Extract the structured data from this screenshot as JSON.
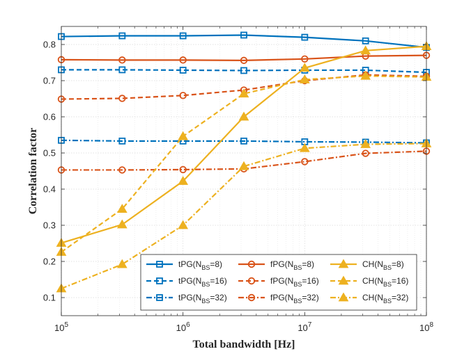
{
  "chart_data": {
    "type": "line",
    "xlabel": "Total bandwidth [Hz]",
    "ylabel": "Correlation factor",
    "xscale": "log",
    "xlim": [
      100000,
      100000000
    ],
    "ylim": [
      0.05,
      0.85
    ],
    "xticks": [
      {
        "value": 100000,
        "base": "10",
        "exp": "5"
      },
      {
        "value": 1000000,
        "base": "10",
        "exp": "6"
      },
      {
        "value": 10000000,
        "base": "10",
        "exp": "7"
      },
      {
        "value": 100000000,
        "base": "10",
        "exp": "8"
      }
    ],
    "yticks": [
      {
        "value": 0.1,
        "label": "0.1"
      },
      {
        "value": 0.2,
        "label": "0.2"
      },
      {
        "value": 0.3,
        "label": "0.3"
      },
      {
        "value": 0.4,
        "label": "0.4"
      },
      {
        "value": 0.5,
        "label": "0.5"
      },
      {
        "value": 0.6,
        "label": "0.6"
      },
      {
        "value": 0.7,
        "label": "0.7"
      },
      {
        "value": 0.8,
        "label": "0.8"
      }
    ],
    "grid": true,
    "minor_grid": true,
    "legend_position": "bottom",
    "x": [
      100000,
      316228,
      1000000,
      3162278,
      10000000,
      31622777,
      100000000
    ],
    "series": [
      {
        "name": "tPG(NBS=8)",
        "label": {
          "pre": "tPG(N",
          "sub": "BS",
          "post": "=8)"
        },
        "color": "#0072BD",
        "dash": "solid",
        "marker": "square",
        "values": [
          0.822,
          0.824,
          0.824,
          0.826,
          0.82,
          0.81,
          0.792
        ]
      },
      {
        "name": "tPG(NBS=16)",
        "label": {
          "pre": "tPG(N",
          "sub": "BS",
          "post": "=16)"
        },
        "color": "#0072BD",
        "dash": "dashed",
        "marker": "square",
        "values": [
          0.73,
          0.73,
          0.729,
          0.728,
          0.729,
          0.729,
          0.723
        ]
      },
      {
        "name": "tPG(NBS=32)",
        "label": {
          "pre": "tPG(N",
          "sub": "BS",
          "post": "=32)"
        },
        "color": "#0072BD",
        "dash": "dashdot",
        "marker": "square",
        "values": [
          0.535,
          0.533,
          0.533,
          0.533,
          0.531,
          0.53,
          0.528
        ]
      },
      {
        "name": "fPG(NBS=8)",
        "label": {
          "pre": "fPG(N",
          "sub": "BS",
          "post": "=8)"
        },
        "color": "#D95319",
        "dash": "solid",
        "marker": "circle",
        "values": [
          0.758,
          0.757,
          0.757,
          0.756,
          0.76,
          0.768,
          0.77
        ]
      },
      {
        "name": "fPG(NBS=16)",
        "label": {
          "pre": "fPG(N",
          "sub": "BS",
          "post": "=16)"
        },
        "color": "#D95319",
        "dash": "dashed",
        "marker": "circle",
        "values": [
          0.649,
          0.651,
          0.659,
          0.674,
          0.7,
          0.716,
          0.712
        ]
      },
      {
        "name": "fPG(NBS=32)",
        "label": {
          "pre": "fPG(N",
          "sub": "BS",
          "post": "=32)"
        },
        "color": "#D95319",
        "dash": "dashdot",
        "marker": "circle",
        "values": [
          0.453,
          0.453,
          0.454,
          0.456,
          0.476,
          0.499,
          0.505
        ]
      },
      {
        "name": "CH(NBS=8)",
        "label": {
          "pre": "CH(N",
          "sub": "BS",
          "post": "=8)"
        },
        "color": "#EDB120",
        "dash": "solid",
        "marker": "triangle",
        "values": [
          0.251,
          0.302,
          0.422,
          0.6,
          0.735,
          0.783,
          0.795
        ]
      },
      {
        "name": "CH(NBS=16)",
        "label": {
          "pre": "CH(N",
          "sub": "BS",
          "post": "=16)"
        },
        "color": "#EDB120",
        "dash": "dashed",
        "marker": "triangle",
        "values": [
          0.226,
          0.345,
          0.546,
          0.664,
          0.703,
          0.713,
          0.71
        ]
      },
      {
        "name": "CH(NBS=32)",
        "label": {
          "pre": "CH(N",
          "sub": "BS",
          "post": "=32)"
        },
        "color": "#EDB120",
        "dash": "dashdot",
        "marker": "triangle",
        "values": [
          0.125,
          0.192,
          0.3,
          0.463,
          0.513,
          0.524,
          0.526
        ]
      }
    ]
  }
}
